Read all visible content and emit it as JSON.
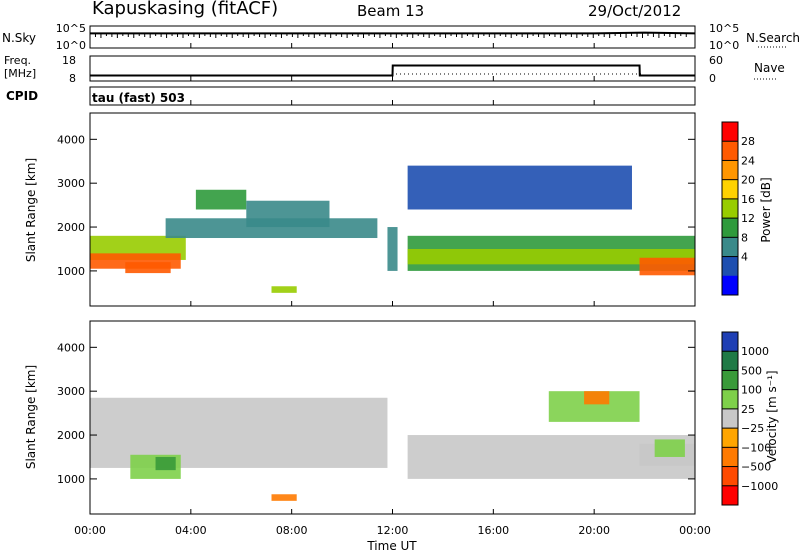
{
  "header": {
    "station": "Kapuskasing (fitACF)",
    "beam": "Beam 13",
    "date": "29/Oct/2012"
  },
  "top_panels": {
    "nsky_label": "N.Sky",
    "nsky_ticks": [
      "10^5",
      "10^0"
    ],
    "nsearch_label": "N.Search",
    "nsearch_ticks": [
      "10^5",
      "10^0"
    ],
    "freq_label": "Freq.",
    "freq_unit": "[MHz]",
    "freq_ticks": [
      "18",
      "8"
    ],
    "nave_label": "Nave",
    "nave_ticks": [
      "60",
      "0"
    ],
    "cpid_label": "CPID",
    "cpid_value": "tau (fast) 503"
  },
  "power_colorbar": {
    "label": "Power [dB]",
    "ticks": [
      "28",
      "24",
      "20",
      "16",
      "12",
      "8",
      "4"
    ],
    "colors": [
      "#ff0000",
      "#ff5a00",
      "#ff9600",
      "#ffd200",
      "#98cc00",
      "#2f9a3c",
      "#3a8a8a",
      "#1e4fb0",
      "#0000ff"
    ]
  },
  "velocity_colorbar": {
    "label": "Velocity [m s⁻¹]",
    "ticks": [
      "1000",
      "500",
      "100",
      "25",
      "−25",
      "−100",
      "−500",
      "−1000"
    ],
    "colors": [
      "#1f3fb4",
      "#1f7a46",
      "#3a9a3a",
      "#7ed04a",
      "#c8c8c8",
      "#ffa500",
      "#ff7a00",
      "#ff4a00",
      "#ff0000"
    ]
  },
  "axes": {
    "ylabel": "Slant Range [km]",
    "yticks": [
      "1000",
      "2000",
      "3000",
      "4000"
    ],
    "xlabel": "Time UT",
    "xticks": [
      "00:00",
      "04:00",
      "08:00",
      "12:00",
      "16:00",
      "20:00",
      "00:00"
    ]
  },
  "chart_data": [
    {
      "type": "line",
      "name": "nsky",
      "x_hours": [
        0,
        2,
        4,
        6,
        8,
        10,
        12,
        14,
        16,
        18,
        20,
        22,
        24
      ],
      "values": [
        3,
        3,
        3,
        3,
        3,
        3,
        3,
        3,
        3,
        3,
        3,
        3.5,
        3
      ]
    },
    {
      "type": "line",
      "name": "freq",
      "x_hours": [
        0,
        12,
        12.01,
        21.8,
        21.81,
        24
      ],
      "values": [
        10.2,
        10.2,
        14.2,
        14.2,
        10.2,
        10.2
      ],
      "ylim": [
        8,
        18
      ]
    },
    {
      "type": "heatmap",
      "title": "Power",
      "xlim_hours": [
        0,
        24
      ],
      "ylim_km": [
        200,
        4600
      ],
      "cbar_range_db": [
        0,
        30
      ],
      "regions": [
        {
          "t0": 0,
          "t1": 3.8,
          "r0": 1250,
          "r1": 1800,
          "value": 14
        },
        {
          "t0": 0,
          "t1": 3.6,
          "r0": 1050,
          "r1": 1400,
          "value": 24
        },
        {
          "t0": 1.4,
          "t1": 3.2,
          "r0": 950,
          "r1": 1200,
          "value": 25
        },
        {
          "t0": 3,
          "t1": 11.4,
          "r0": 1750,
          "r1": 2200,
          "value": 8
        },
        {
          "t0": 4.2,
          "t1": 6.2,
          "r0": 2400,
          "r1": 2850,
          "value": 10
        },
        {
          "t0": 6.2,
          "t1": 9.5,
          "r0": 2000,
          "r1": 2600,
          "value": 9
        },
        {
          "t0": 11.8,
          "t1": 12.2,
          "r0": 1000,
          "r1": 2000,
          "value": 8
        },
        {
          "t0": 12.6,
          "t1": 24,
          "r0": 1000,
          "r1": 1800,
          "value": 12
        },
        {
          "t0": 12.6,
          "t1": 24,
          "r0": 1150,
          "r1": 1500,
          "value": 16
        },
        {
          "t0": 21.8,
          "t1": 24,
          "r0": 900,
          "r1": 1300,
          "value": 26
        },
        {
          "t0": 12.6,
          "t1": 21.5,
          "r0": 2400,
          "r1": 3400,
          "value": 6
        },
        {
          "t0": 7.2,
          "t1": 8.2,
          "r0": 500,
          "r1": 650,
          "value": 16
        }
      ]
    },
    {
      "type": "heatmap",
      "title": "Velocity",
      "xlim_hours": [
        0,
        24
      ],
      "ylim_km": [
        200,
        4600
      ],
      "cbar_range_ms": [
        -1000,
        1000
      ],
      "regions": [
        {
          "t0": 0,
          "t1": 11.8,
          "r0": 1250,
          "r1": 2850,
          "value": 0
        },
        {
          "t0": 12.6,
          "t1": 24,
          "r0": 1000,
          "r1": 2000,
          "value": 0
        },
        {
          "t0": 1.6,
          "t1": 3.6,
          "r0": 1000,
          "r1": 1550,
          "value": 80
        },
        {
          "t0": 2.6,
          "t1": 3.4,
          "r0": 1200,
          "r1": 1500,
          "value": 450
        },
        {
          "t0": 18.2,
          "t1": 21.8,
          "r0": 2300,
          "r1": 3000,
          "value": 60
        },
        {
          "t0": 19.6,
          "t1": 20.6,
          "r0": 2700,
          "r1": 3000,
          "value": -300
        },
        {
          "t0": 7.2,
          "t1": 8.2,
          "r0": 500,
          "r1": 650,
          "value": -300
        },
        {
          "t0": 21.8,
          "t1": 24,
          "r0": 1300,
          "r1": 1800,
          "value": 0
        },
        {
          "t0": 22.4,
          "t1": 23.6,
          "r0": 1500,
          "r1": 1900,
          "value": 50
        }
      ]
    }
  ]
}
